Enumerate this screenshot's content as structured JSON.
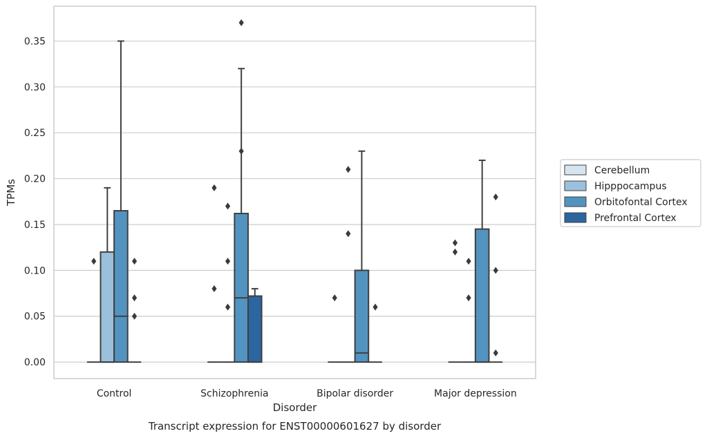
{
  "chart_data": {
    "type": "box",
    "title": "",
    "caption": "Transcript expression for ENST00000601627 by disorder",
    "xlabel": "Disorder",
    "ylabel": "TPMs",
    "ylim": [
      -0.018,
      0.388
    ],
    "yticks": [
      0.0,
      0.05,
      0.1,
      0.15,
      0.2,
      0.25,
      0.3,
      0.35
    ],
    "ytick_labels": [
      "0.00",
      "0.05",
      "0.10",
      "0.15",
      "0.20",
      "0.25",
      "0.30",
      "0.35"
    ],
    "grid": "horizontal",
    "legend_position": "right",
    "categories": [
      "Control",
      "Schizophrenia",
      "Bipolar disorder",
      "Major depression"
    ],
    "series": [
      {
        "name": "Cerebellum",
        "color": "#d6e4f0",
        "boxes": [
          {
            "q1": 0,
            "median": 0,
            "q3": 0,
            "whisker_low": 0,
            "whisker_high": 0,
            "outliers": [
              0.11
            ]
          },
          {
            "q1": 0,
            "median": 0,
            "q3": 0,
            "whisker_low": 0,
            "whisker_high": 0,
            "outliers": [
              0.19,
              0.08
            ]
          },
          {
            "q1": 0,
            "median": 0,
            "q3": 0,
            "whisker_low": 0,
            "whisker_high": 0,
            "outliers": [
              0.07
            ]
          },
          {
            "q1": 0,
            "median": 0,
            "q3": 0,
            "whisker_low": 0,
            "whisker_high": 0,
            "outliers": [
              0.13,
              0.12
            ]
          }
        ]
      },
      {
        "name": "Hipppocampus",
        "color": "#9bc0db",
        "boxes": [
          {
            "q1": 0,
            "median": 0,
            "q3": 0.12,
            "whisker_low": 0,
            "whisker_high": 0.19,
            "outliers": []
          },
          {
            "q1": 0,
            "median": 0,
            "q3": 0,
            "whisker_low": 0,
            "whisker_high": 0,
            "outliers": [
              0.17,
              0.11,
              0.06
            ]
          },
          {
            "q1": 0,
            "median": 0,
            "q3": 0,
            "whisker_low": 0,
            "whisker_high": 0,
            "outliers": [
              0.21,
              0.14
            ]
          },
          {
            "q1": 0,
            "median": 0,
            "q3": 0,
            "whisker_low": 0,
            "whisker_high": 0,
            "outliers": [
              0.11,
              0.07
            ]
          }
        ]
      },
      {
        "name": "Orbitofontal Cortex",
        "color": "#5393c0",
        "boxes": [
          {
            "q1": 0,
            "median": 0.05,
            "q3": 0.165,
            "whisker_low": 0,
            "whisker_high": 0.35,
            "outliers": []
          },
          {
            "q1": 0,
            "median": 0.07,
            "q3": 0.162,
            "whisker_low": 0,
            "whisker_high": 0.32,
            "outliers": [
              0.37,
              0.23
            ]
          },
          {
            "q1": 0,
            "median": 0.01,
            "q3": 0.1,
            "whisker_low": 0,
            "whisker_high": 0.23,
            "outliers": []
          },
          {
            "q1": 0,
            "median": 0,
            "q3": 0.145,
            "whisker_low": 0,
            "whisker_high": 0.22,
            "outliers": []
          }
        ]
      },
      {
        "name": "Prefrontal Cortex",
        "color": "#2b66a0",
        "boxes": [
          {
            "q1": 0,
            "median": 0,
            "q3": 0,
            "whisker_low": 0,
            "whisker_high": 0,
            "outliers": [
              0.11,
              0.07,
              0.05
            ]
          },
          {
            "q1": 0,
            "median": 0,
            "q3": 0.072,
            "whisker_low": 0,
            "whisker_high": 0.08,
            "outliers": []
          },
          {
            "q1": 0,
            "median": 0,
            "q3": 0,
            "whisker_low": 0,
            "whisker_high": 0,
            "outliers": [
              0.06
            ]
          },
          {
            "q1": 0,
            "median": 0,
            "q3": 0,
            "whisker_low": 0,
            "whisker_high": 0,
            "outliers": [
              0.18,
              0.1,
              0.01
            ]
          }
        ]
      }
    ]
  }
}
